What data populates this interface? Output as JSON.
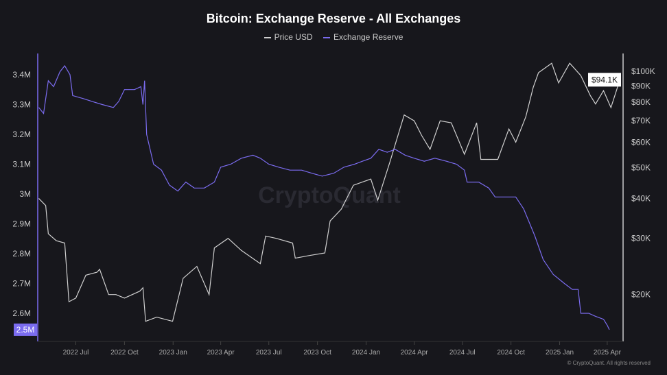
{
  "chart_data": {
    "type": "line",
    "title": "Bitcoin: Exchange Reserve - All Exchanges",
    "watermark": "CryptoQuant",
    "copyright": "© CryptoQuant. All rights reserved",
    "grid": false,
    "legend_placement": "top-center",
    "x_ticks": [
      "2022 Jul",
      "2022 Oct",
      "2023 Jan",
      "2023 Apr",
      "2023 Jul",
      "2023 Oct",
      "2024 Jan",
      "2024 Apr",
      "2024 Jul",
      "2024 Oct",
      "2025 Jan",
      "2025 Apr"
    ],
    "x_tick_dates": [
      "2022-07-01",
      "2022-10-01",
      "2023-01-01",
      "2023-04-01",
      "2023-07-01",
      "2023-10-01",
      "2024-01-01",
      "2024-04-01",
      "2024-07-01",
      "2024-10-01",
      "2025-01-01",
      "2025-04-01"
    ],
    "xlim": [
      "2022-04-20",
      "2025-05-01"
    ],
    "left_axis": {
      "ticks": [
        "3.4M",
        "3.3M",
        "3.2M",
        "3.1M",
        "3M",
        "2.9M",
        "2.8M",
        "2.7M",
        "2.6M"
      ],
      "tick_values": [
        3.4,
        3.3,
        3.2,
        3.1,
        3.0,
        2.9,
        2.8,
        2.7,
        2.6
      ],
      "ylim": [
        2.5,
        3.47
      ],
      "current_label": "2.5M"
    },
    "right_axis": {
      "scale": "log",
      "ticks": [
        "$100K",
        "$90K",
        "$80K",
        "$70K",
        "$60K",
        "$50K",
        "$40K",
        "$30K",
        "$20K"
      ],
      "tick_values": [
        100000,
        90000,
        80000,
        70000,
        60000,
        50000,
        40000,
        30000,
        20000
      ],
      "ylim": [
        15000,
        110000
      ],
      "current_label": "$94.1K"
    },
    "series": [
      {
        "name": "Price USD",
        "color": "#d0d0d0",
        "axis": "right",
        "x": [
          "2022-04-22",
          "2022-05-05",
          "2022-05-10",
          "2022-05-25",
          "2022-06-10",
          "2022-06-18",
          "2022-07-01",
          "2022-07-20",
          "2022-08-10",
          "2022-08-15",
          "2022-09-01",
          "2022-09-15",
          "2022-10-01",
          "2022-10-30",
          "2022-11-05",
          "2022-11-10",
          "2022-12-01",
          "2022-12-31",
          "2023-01-20",
          "2023-02-15",
          "2023-03-10",
          "2023-03-20",
          "2023-04-15",
          "2023-05-10",
          "2023-06-15",
          "2023-06-25",
          "2023-07-15",
          "2023-08-15",
          "2023-08-20",
          "2023-09-15",
          "2023-10-15",
          "2023-10-25",
          "2023-11-15",
          "2023-12-08",
          "2024-01-10",
          "2024-01-23",
          "2024-02-15",
          "2024-03-13",
          "2024-04-01",
          "2024-04-15",
          "2024-05-01",
          "2024-05-20",
          "2024-06-10",
          "2024-07-05",
          "2024-07-28",
          "2024-08-05",
          "2024-09-06",
          "2024-09-27",
          "2024-10-10",
          "2024-10-29",
          "2024-11-12",
          "2024-11-22",
          "2024-12-17",
          "2024-12-30",
          "2025-01-20",
          "2025-02-10",
          "2025-02-28",
          "2025-03-10",
          "2025-03-25",
          "2025-04-08",
          "2025-04-25"
        ],
        "values": [
          40000,
          38000,
          31000,
          29500,
          29000,
          19000,
          19500,
          23000,
          23500,
          24000,
          20000,
          20000,
          19500,
          20500,
          21000,
          16500,
          17000,
          16500,
          22500,
          24500,
          20000,
          28000,
          30000,
          27500,
          25000,
          30500,
          30000,
          29000,
          26000,
          26500,
          27000,
          34000,
          37000,
          44000,
          46000,
          39500,
          52000,
          73000,
          70000,
          63000,
          57000,
          70000,
          69000,
          55000,
          69000,
          53000,
          53000,
          66000,
          60000,
          72000,
          89000,
          99000,
          106000,
          92000,
          106000,
          97000,
          84000,
          79000,
          87000,
          77000,
          94100
        ]
      },
      {
        "name": "Exchange Reserve",
        "color": "#7b6cf0",
        "axis": "left",
        "x": [
          "2022-04-22",
          "2022-05-01",
          "2022-05-10",
          "2022-05-20",
          "2022-06-01",
          "2022-06-10",
          "2022-06-20",
          "2022-06-25",
          "2022-07-15",
          "2022-08-01",
          "2022-08-20",
          "2022-09-10",
          "2022-09-20",
          "2022-10-01",
          "2022-10-20",
          "2022-11-01",
          "2022-11-05",
          "2022-11-08",
          "2022-11-12",
          "2022-11-25",
          "2022-12-10",
          "2022-12-25",
          "2023-01-10",
          "2023-01-25",
          "2023-02-10",
          "2023-03-01",
          "2023-03-20",
          "2023-04-01",
          "2023-04-20",
          "2023-05-10",
          "2023-06-01",
          "2023-06-15",
          "2023-07-01",
          "2023-07-20",
          "2023-08-10",
          "2023-09-01",
          "2023-09-20",
          "2023-10-10",
          "2023-11-01",
          "2023-11-20",
          "2023-12-10",
          "2023-12-25",
          "2024-01-10",
          "2024-01-25",
          "2024-02-10",
          "2024-02-25",
          "2024-03-15",
          "2024-04-01",
          "2024-04-20",
          "2024-05-10",
          "2024-06-01",
          "2024-06-20",
          "2024-07-05",
          "2024-07-10",
          "2024-08-01",
          "2024-08-20",
          "2024-09-01",
          "2024-09-20",
          "2024-10-10",
          "2024-10-25",
          "2024-11-15",
          "2024-12-01",
          "2024-12-20",
          "2025-01-10",
          "2025-01-25",
          "2025-02-05",
          "2025-02-10",
          "2025-02-25",
          "2025-03-10",
          "2025-03-25",
          "2025-04-01",
          "2025-04-05"
        ],
        "values": [
          3.29,
          3.27,
          3.38,
          3.36,
          3.41,
          3.43,
          3.4,
          3.33,
          3.32,
          3.31,
          3.3,
          3.29,
          3.31,
          3.35,
          3.35,
          3.36,
          3.3,
          3.38,
          3.2,
          3.1,
          3.08,
          3.03,
          3.01,
          3.04,
          3.02,
          3.02,
          3.04,
          3.09,
          3.1,
          3.12,
          3.13,
          3.12,
          3.1,
          3.09,
          3.08,
          3.08,
          3.07,
          3.06,
          3.07,
          3.09,
          3.1,
          3.11,
          3.12,
          3.15,
          3.14,
          3.15,
          3.13,
          3.12,
          3.11,
          3.12,
          3.11,
          3.1,
          3.08,
          3.04,
          3.04,
          3.02,
          2.99,
          2.99,
          2.99,
          2.95,
          2.86,
          2.78,
          2.73,
          2.7,
          2.68,
          2.68,
          2.6,
          2.6,
          2.59,
          2.58,
          2.56,
          2.545
        ]
      }
    ]
  }
}
